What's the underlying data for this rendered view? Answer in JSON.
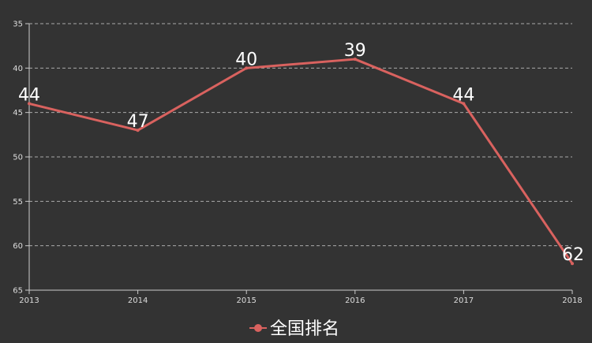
{
  "chart_data": {
    "type": "line",
    "categories": [
      "2013",
      "2014",
      "2015",
      "2016",
      "2017",
      "2018"
    ],
    "series": [
      {
        "name": "全国排名",
        "values": [
          44,
          47,
          40,
          39,
          44,
          62
        ],
        "color": "#d9625f"
      }
    ],
    "y_ticks": [
      35,
      40,
      45,
      50,
      55,
      60,
      65
    ],
    "ylim": [
      35,
      65
    ],
    "y_inverted": true,
    "grid": true,
    "legend_position": "bottom-center",
    "background": "#333333",
    "axis_color": "#cccccc",
    "grid_color": "#aaaaaa"
  }
}
